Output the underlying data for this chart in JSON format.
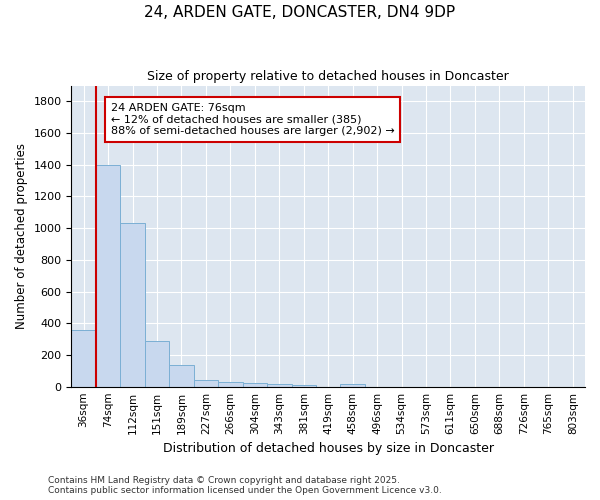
{
  "title": "24, ARDEN GATE, DONCASTER, DN4 9DP",
  "subtitle": "Size of property relative to detached houses in Doncaster",
  "xlabel": "Distribution of detached houses by size in Doncaster",
  "ylabel": "Number of detached properties",
  "bar_color": "#c8d8ee",
  "bar_edgecolor": "#7bafd4",
  "background_color": "#dde6f0",
  "grid_color": "#ffffff",
  "annotation_text": "24 ARDEN GATE: 76sqm\n← 12% of detached houses are smaller (385)\n88% of semi-detached houses are larger (2,902) →",
  "vline_x_idx": 1,
  "vline_color": "#cc0000",
  "categories": [
    "36sqm",
    "74sqm",
    "112sqm",
    "151sqm",
    "189sqm",
    "227sqm",
    "266sqm",
    "304sqm",
    "343sqm",
    "381sqm",
    "419sqm",
    "458sqm",
    "496sqm",
    "534sqm",
    "573sqm",
    "611sqm",
    "650sqm",
    "688sqm",
    "726sqm",
    "765sqm",
    "803sqm"
  ],
  "values": [
    355,
    1400,
    1030,
    290,
    135,
    45,
    30,
    25,
    15,
    10,
    0,
    20,
    0,
    0,
    0,
    0,
    0,
    0,
    0,
    0,
    0
  ],
  "ylim": [
    0,
    1900
  ],
  "yticks": [
    0,
    200,
    400,
    600,
    800,
    1000,
    1200,
    1400,
    1600,
    1800
  ],
  "footer": "Contains HM Land Registry data © Crown copyright and database right 2025.\nContains public sector information licensed under the Open Government Licence v3.0."
}
